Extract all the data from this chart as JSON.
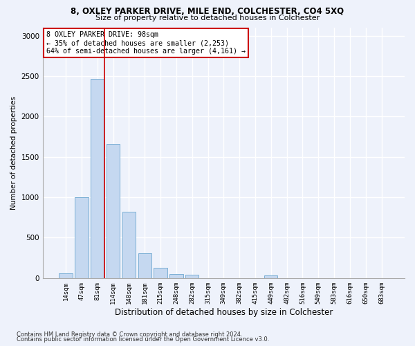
{
  "title1": "8, OXLEY PARKER DRIVE, MILE END, COLCHESTER, CO4 5XQ",
  "title2": "Size of property relative to detached houses in Colchester",
  "xlabel": "Distribution of detached houses by size in Colchester",
  "ylabel": "Number of detached properties",
  "categories": [
    "14sqm",
    "47sqm",
    "81sqm",
    "114sqm",
    "148sqm",
    "181sqm",
    "215sqm",
    "248sqm",
    "282sqm",
    "315sqm",
    "349sqm",
    "382sqm",
    "415sqm",
    "449sqm",
    "482sqm",
    "516sqm",
    "549sqm",
    "583sqm",
    "616sqm",
    "650sqm",
    "683sqm"
  ],
  "values": [
    60,
    1000,
    2470,
    1660,
    820,
    305,
    130,
    50,
    45,
    0,
    0,
    0,
    0,
    30,
    0,
    0,
    0,
    0,
    0,
    0,
    0
  ],
  "bar_color": "#c5d8f0",
  "bar_edge_color": "#7bafd4",
  "vline_color": "#cc0000",
  "annotation_text": "8 OXLEY PARKER DRIVE: 98sqm\n← 35% of detached houses are smaller (2,253)\n64% of semi-detached houses are larger (4,161) →",
  "annotation_box_color": "#ffffff",
  "annotation_box_edge": "#cc0000",
  "background_color": "#eef2fb",
  "grid_color": "#ffffff",
  "footnote1": "Contains HM Land Registry data © Crown copyright and database right 2024.",
  "footnote2": "Contains public sector information licensed under the Open Government Licence v3.0.",
  "ylim": [
    0,
    3100
  ],
  "yticks": [
    0,
    500,
    1000,
    1500,
    2000,
    2500,
    3000
  ]
}
